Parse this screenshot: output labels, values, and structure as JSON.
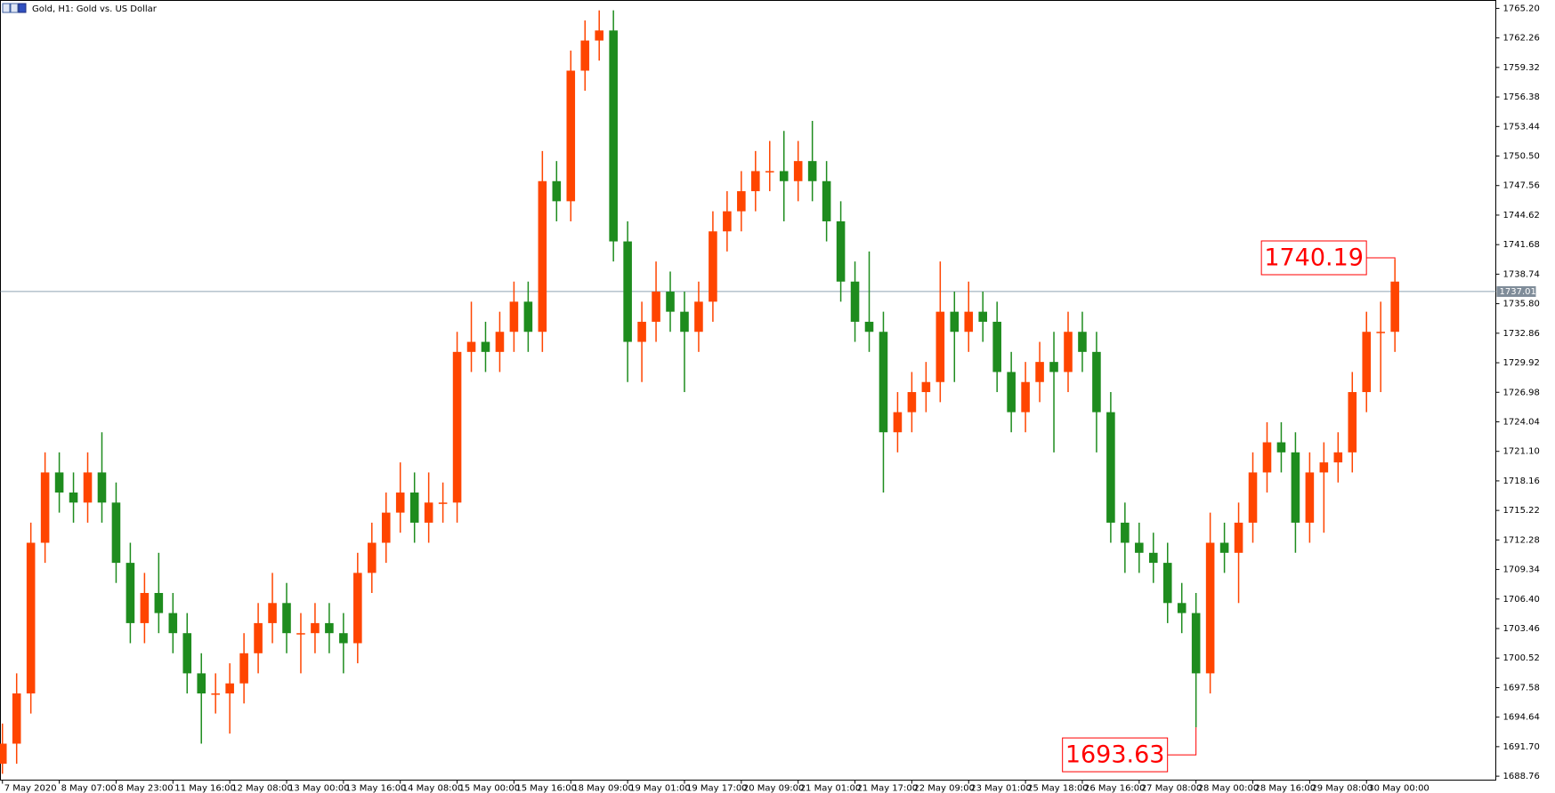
{
  "chart_data": {
    "type": "candlestick",
    "title": "Gold, H1:  Gold vs. US Dollar",
    "up_color": "#ff4500",
    "down_color": "#1e8c1e",
    "open": [
      1690,
      1692,
      1697,
      1712,
      1719,
      1717,
      1716,
      1719,
      1716,
      1710,
      1704,
      1707,
      1705,
      1703,
      1699,
      1697,
      1697,
      1698,
      1701,
      1704,
      1706,
      1703,
      1703,
      1704,
      1703,
      1702,
      1709,
      1712,
      1715,
      1717,
      1714,
      1716,
      1716,
      1731,
      1732,
      1731,
      1733,
      1736,
      1733,
      1748,
      1746,
      1759,
      1762,
      1763,
      1742,
      1732,
      1734,
      1737,
      1735,
      1733,
      1736,
      1743,
      1745,
      1747,
      1749,
      1749,
      1748,
      1750,
      1748,
      1744,
      1738,
      1734,
      1733,
      1723,
      1725,
      1727,
      1728,
      1735,
      1733,
      1735,
      1734,
      1729,
      1725,
      1728,
      1730,
      1729,
      1733,
      1731,
      1725,
      1714,
      1712,
      1711,
      1710,
      1706,
      1705,
      1699,
      1712,
      1711,
      1714,
      1719,
      1722,
      1721,
      1714,
      1719,
      1720,
      1721,
      1727,
      1733,
      1733
    ],
    "high": [
      1694,
      1699,
      1714,
      1721,
      1721,
      1719,
      1721,
      1723,
      1718,
      1712,
      1709,
      1711,
      1707,
      1705,
      1701,
      1699,
      1700,
      1703,
      1706,
      1709,
      1708,
      1705,
      1706,
      1706,
      1705,
      1711,
      1714,
      1717,
      1720,
      1719,
      1719,
      1718,
      1733,
      1736,
      1734,
      1735,
      1738,
      1738,
      1751,
      1750,
      1761,
      1764,
      1765,
      1765,
      1744,
      1736,
      1740,
      1739,
      1737,
      1738,
      1745,
      1747,
      1749,
      1751,
      1752,
      1753,
      1752,
      1754,
      1750,
      1746,
      1740,
      1741,
      1735,
      1727,
      1729,
      1730,
      1740,
      1737,
      1738,
      1737,
      1736,
      1731,
      1730,
      1732,
      1733,
      1735,
      1735,
      1733,
      1727,
      1716,
      1714,
      1713,
      1712,
      1708,
      1707,
      1715,
      1714,
      1716,
      1721,
      1724,
      1724,
      1723,
      1721,
      1722,
      1723,
      1729,
      1735,
      1736,
      1740.19
    ],
    "low": [
      1689,
      1690,
      1695,
      1710,
      1715,
      1714,
      1714,
      1714,
      1708,
      1702,
      1702,
      1703,
      1701,
      1697,
      1692,
      1695,
      1693,
      1696,
      1699,
      1702,
      1701,
      1699,
      1701,
      1701,
      1699,
      1700,
      1707,
      1710,
      1713,
      1712,
      1712,
      1714,
      1714,
      1729,
      1729,
      1729,
      1731,
      1731,
      1731,
      1744,
      1744,
      1757,
      1760,
      1740,
      1728,
      1728,
      1732,
      1733,
      1727,
      1731,
      1734,
      1741,
      1743,
      1745,
      1747,
      1744,
      1746,
      1746,
      1742,
      1736,
      1732,
      1731,
      1717,
      1721,
      1723,
      1725,
      1726,
      1728,
      1731,
      1732,
      1727,
      1723,
      1723,
      1726,
      1721,
      1727,
      1729,
      1721,
      1712,
      1709,
      1709,
      1708,
      1704,
      1703,
      1693.63,
      1697,
      1709,
      1706,
      1712,
      1717,
      1719,
      1711,
      1712,
      1713,
      1718,
      1719,
      1725,
      1727,
      1731
    ],
    "close": [
      1692,
      1697,
      1712,
      1719,
      1717,
      1716,
      1719,
      1716,
      1710,
      1704,
      1707,
      1705,
      1703,
      1699,
      1697,
      1697,
      1698,
      1701,
      1704,
      1706,
      1703,
      1703,
      1704,
      1703,
      1702,
      1709,
      1712,
      1715,
      1717,
      1714,
      1716,
      1716,
      1731,
      1732,
      1731,
      1733,
      1736,
      1733,
      1748,
      1746,
      1759,
      1762,
      1763,
      1742,
      1732,
      1734,
      1737,
      1735,
      1733,
      1736,
      1743,
      1745,
      1747,
      1749,
      1749,
      1748,
      1750,
      1748,
      1744,
      1738,
      1734,
      1733,
      1723,
      1725,
      1727,
      1728,
      1735,
      1733,
      1735,
      1734,
      1729,
      1725,
      1728,
      1730,
      1729,
      1733,
      1731,
      1725,
      1714,
      1712,
      1711,
      1710,
      1706,
      1705,
      1699,
      1712,
      1711,
      1714,
      1719,
      1722,
      1721,
      1714,
      1719,
      1720,
      1721,
      1727,
      1733,
      1733,
      1738
    ],
    "xlim": [
      -0.14,
      105.1
    ],
    "xticks": [
      {
        "value": 0,
        "label": "7 May 2020"
      },
      {
        "value": 4,
        "label": "8 May 07:00"
      },
      {
        "value": 8,
        "label": "8 May 23:00"
      },
      {
        "value": 12,
        "label": "11 May 16:00"
      },
      {
        "value": 16,
        "label": "12 May 08:00"
      },
      {
        "value": 20,
        "label": "13 May 00:00"
      },
      {
        "value": 24,
        "label": "13 May 16:00"
      },
      {
        "value": 28,
        "label": "14 May 08:00"
      },
      {
        "value": 32,
        "label": "15 May 00:00"
      },
      {
        "value": 36,
        "label": "15 May 16:00"
      },
      {
        "value": 40,
        "label": "18 May 09:00"
      },
      {
        "value": 44,
        "label": "19 May 01:00"
      },
      {
        "value": 48,
        "label": "19 May 17:00"
      },
      {
        "value": 52,
        "label": "20 May 09:00"
      },
      {
        "value": 56,
        "label": "21 May 01:00"
      },
      {
        "value": 60,
        "label": "21 May 17:00"
      },
      {
        "value": 64,
        "label": "22 May 09:00"
      },
      {
        "value": 68,
        "label": "23 May 01:00"
      },
      {
        "value": 72,
        "label": "25 May 18:00"
      },
      {
        "value": 76,
        "label": "26 May 16:00"
      },
      {
        "value": 80,
        "label": "27 May 08:00"
      },
      {
        "value": 84,
        "label": "28 May 00:00"
      },
      {
        "value": 88,
        "label": "28 May 16:00"
      },
      {
        "value": 92,
        "label": "29 May 08:00"
      },
      {
        "value": 96,
        "label": "30 May 00:00"
      }
    ],
    "ylim": [
      1688.37,
      1765.99
    ],
    "yticks": [
      {
        "value": 1765.2,
        "label": "1765.20"
      },
      1762.26,
      1759.32,
      1756.38,
      1753.44,
      {
        "value": 1750.5,
        "label": "1750.50"
      },
      1747.56,
      1744.62,
      1741.68,
      1738.74,
      {
        "value": 1735.8,
        "label": "1735.80"
      },
      1732.86,
      1729.92,
      1726.98,
      1724.04,
      {
        "value": 1721.1,
        "label": "1721.10"
      },
      1718.16,
      1715.22,
      1712.28,
      1709.34,
      {
        "value": 1706.4,
        "label": "1706.40"
      },
      1703.46,
      1700.52,
      1697.58,
      1694.64,
      {
        "value": 1691.7,
        "label": "1691.70"
      },
      1688.76
    ],
    "price_line": 1737.01,
    "annotations": [
      {
        "x": 98,
        "value": 1740.19,
        "anchor": "high"
      },
      {
        "x": 84,
        "value": 1693.63,
        "anchor": "low"
      }
    ]
  }
}
